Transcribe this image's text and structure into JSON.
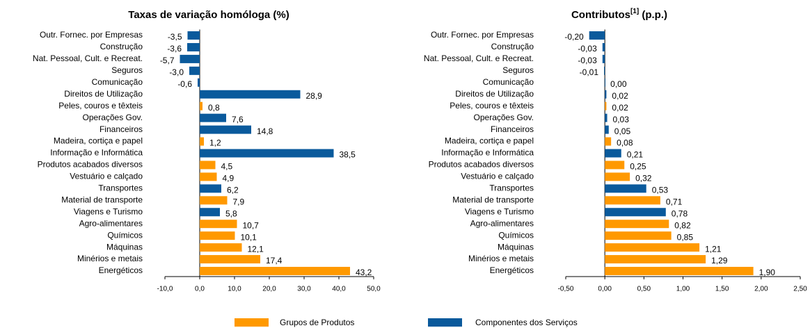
{
  "chart_data": [
    {
      "type": "bar",
      "orientation": "horizontal",
      "title": [
        "Taxas de variação homóloga (%)"
      ],
      "categories": [
        "Outr. Fornec. por Empresas",
        "Construção",
        "Nat. Pessoal, Cult. e Recreat.",
        "Seguros",
        "Comunicação",
        "Direitos de Utilização",
        "Peles, couros e têxteis",
        "Operações Gov.",
        "Financeiros",
        "Madeira, cortiça e papel",
        "Informação e Informática",
        "Produtos acabados diversos",
        "Vestuário e calçado",
        "Transportes",
        "Material de transporte",
        "Viagens e Turismo",
        "Agro-alimentares",
        "Químicos",
        "Máquinas",
        "Minérios e metais",
        "Energéticos"
      ],
      "series": [
        {
          "name": "Grupos de Produtos",
          "color": "#ff9900",
          "values": [
            null,
            null,
            null,
            null,
            null,
            null,
            0.8,
            null,
            null,
            1.2,
            null,
            4.5,
            4.9,
            null,
            7.9,
            null,
            10.7,
            10.1,
            12.1,
            17.4,
            43.2
          ],
          "value_labels": [
            null,
            null,
            null,
            null,
            null,
            null,
            "0,8",
            null,
            null,
            "1,2",
            null,
            "4,5",
            "4,9",
            null,
            "7,9",
            null,
            "10,7",
            "10,1",
            "12,1",
            "17,4",
            "43,2"
          ]
        },
        {
          "name": "Componentes dos Serviços",
          "color": "#0a5a9c",
          "values": [
            -3.5,
            -3.6,
            -5.7,
            -3.0,
            -0.6,
            28.9,
            null,
            7.6,
            14.8,
            null,
            38.5,
            null,
            null,
            6.2,
            null,
            5.8,
            null,
            null,
            null,
            null,
            null
          ],
          "value_labels": [
            "-3,5",
            "-3,6",
            "-5,7",
            "-3,0",
            "-0,6",
            "28,9",
            null,
            "7,6",
            "14,8",
            null,
            "38,5",
            null,
            null,
            "6,2",
            null,
            "5,8",
            null,
            null,
            null,
            null,
            null
          ]
        }
      ],
      "xlim": [
        -10,
        50
      ],
      "xticks": [
        {
          "value": -10,
          "label": "-10,0"
        },
        {
          "value": 0,
          "label": "0,0"
        },
        {
          "value": 10,
          "label": "10,0"
        },
        {
          "value": 20,
          "label": "20,0"
        },
        {
          "value": 30,
          "label": "30,0"
        },
        {
          "value": 40,
          "label": "40,0"
        },
        {
          "value": 50,
          "label": "50,0"
        }
      ]
    },
    {
      "type": "bar",
      "orientation": "horizontal",
      "title": [
        "Contributos",
        "[1]",
        " (p.p.)"
      ],
      "categories": [
        "Outr. Fornec. por Empresas",
        "Construção",
        "Nat. Pessoal, Cult. e Recreat.",
        "Seguros",
        "Comunicação",
        "Direitos de Utilização",
        "Peles, couros e têxteis",
        "Operações Gov.",
        "Financeiros",
        "Madeira, cortiça e papel",
        "Informação e Informática",
        "Produtos acabados diversos",
        "Vestuário e calçado",
        "Transportes",
        "Material de transporte",
        "Viagens e Turismo",
        "Agro-alimentares",
        "Químicos",
        "Máquinas",
        "Minérios e metais",
        "Energéticos"
      ],
      "series": [
        {
          "name": "Grupos de Produtos",
          "color": "#ff9900",
          "values": [
            null,
            null,
            null,
            null,
            null,
            null,
            0.02,
            null,
            null,
            0.08,
            null,
            0.25,
            0.32,
            null,
            0.71,
            null,
            0.82,
            0.85,
            1.21,
            1.29,
            1.9
          ],
          "value_labels": [
            null,
            null,
            null,
            null,
            null,
            null,
            "0,02",
            null,
            null,
            "0,08",
            null,
            "0,25",
            "0,32",
            null,
            "0,71",
            null,
            "0,82",
            "0,85",
            "1,21",
            "1,29",
            "1,90"
          ]
        },
        {
          "name": "Componentes dos Serviços",
          "color": "#0a5a9c",
          "values": [
            -0.2,
            -0.03,
            -0.03,
            -0.01,
            0.0,
            0.02,
            null,
            0.03,
            0.05,
            null,
            0.21,
            null,
            null,
            0.53,
            null,
            0.78,
            null,
            null,
            null,
            null,
            null
          ],
          "value_labels": [
            "-0,20",
            "-0,03",
            "-0,03",
            "-0,01",
            "0,00",
            "0,02",
            null,
            "0,03",
            "0,05",
            null,
            "0,21",
            null,
            null,
            "0,53",
            null,
            "0,78",
            null,
            null,
            null,
            null,
            null
          ]
        }
      ],
      "xlim": [
        -0.5,
        2.5
      ],
      "xticks": [
        {
          "value": -0.5,
          "label": "-0,50"
        },
        {
          "value": 0,
          "label": "0,00"
        },
        {
          "value": 0.5,
          "label": "0,50"
        },
        {
          "value": 1,
          "label": "1,00"
        },
        {
          "value": 1.5,
          "label": "1,50"
        },
        {
          "value": 2,
          "label": "2,00"
        },
        {
          "value": 2.5,
          "label": "2,50"
        }
      ]
    }
  ]
}
